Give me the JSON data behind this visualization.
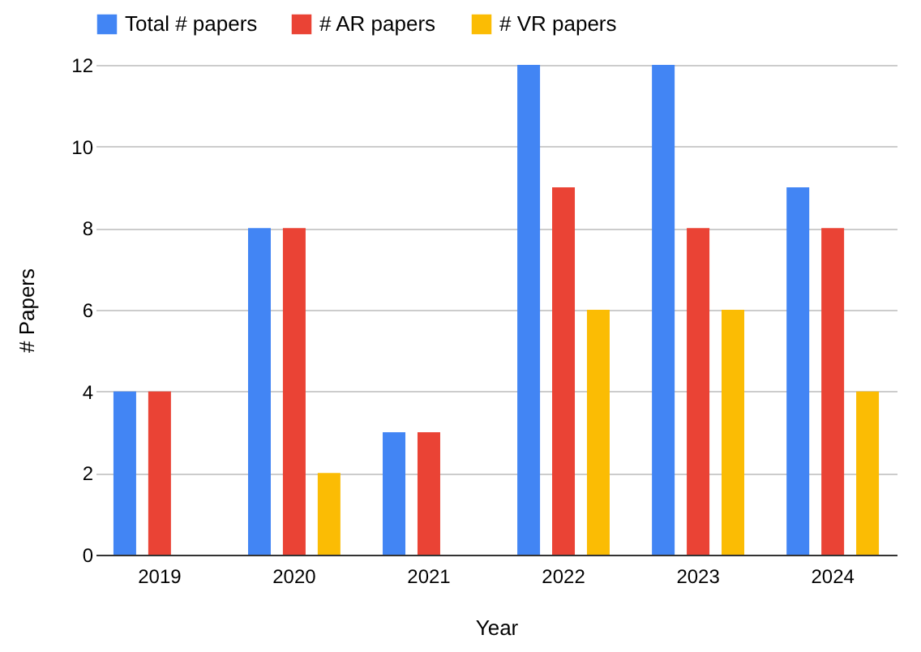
{
  "chart_data": {
    "type": "bar",
    "xlabel": "Year",
    "ylabel": "# Papers",
    "categories": [
      "2019",
      "2020",
      "2021",
      "2022",
      "2023",
      "2024"
    ],
    "series": [
      {
        "name": "Total # papers",
        "color": "#4285f4",
        "values": [
          4,
          8,
          3,
          12,
          12,
          9
        ]
      },
      {
        "name": "# AR papers",
        "color": "#ea4335",
        "values": [
          4,
          8,
          3,
          9,
          8,
          8
        ]
      },
      {
        "name": "# VR papers",
        "color": "#fbbc04",
        "values": [
          0,
          2,
          0,
          6,
          6,
          4
        ]
      }
    ],
    "ylim": [
      0,
      12
    ],
    "yticks": [
      0,
      2,
      4,
      6,
      8,
      10,
      12
    ],
    "grid": "y",
    "legend": "top"
  }
}
